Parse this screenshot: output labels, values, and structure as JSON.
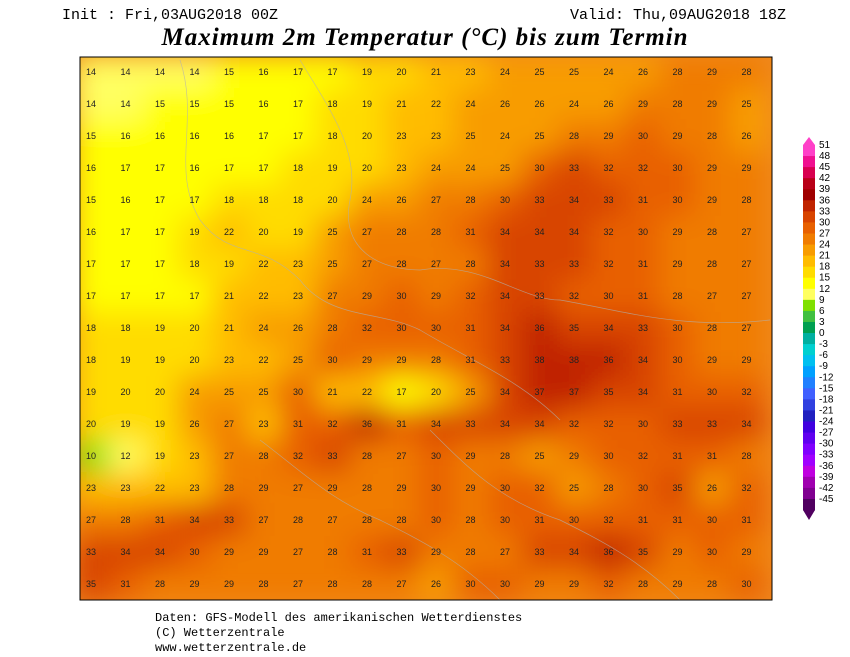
{
  "header": {
    "init": "Init : Fri,03AUG2018 00Z",
    "valid": "Valid: Thu,09AUG2018 18Z",
    "title": "Maximum 2m Temperatur (°C) bis zum Termin"
  },
  "map": {
    "temperature_labels": [
      [
        14,
        14,
        14,
        14,
        15,
        16,
        17,
        17,
        19,
        20,
        21,
        23,
        24,
        25,
        25,
        24,
        26,
        28,
        29,
        28
      ],
      [
        14,
        14,
        15,
        15,
        15,
        16,
        17,
        18,
        19,
        21,
        22,
        24,
        26,
        26,
        24,
        26,
        29,
        28,
        29,
        25
      ],
      [
        15,
        16,
        16,
        16,
        16,
        17,
        17,
        18,
        20,
        23,
        23,
        25,
        24,
        25,
        28,
        29,
        30,
        29,
        28,
        26
      ],
      [
        16,
        17,
        17,
        16,
        17,
        17,
        18,
        19,
        20,
        23,
        24,
        24,
        25,
        30,
        33,
        32,
        32,
        30,
        29,
        29
      ],
      [
        15,
        16,
        17,
        17,
        18,
        18,
        18,
        20,
        24,
        26,
        27,
        28,
        30,
        33,
        34,
        33,
        31,
        30,
        29,
        28
      ],
      [
        16,
        17,
        17,
        19,
        22,
        20,
        19,
        25,
        27,
        28,
        28,
        31,
        34,
        34,
        34,
        32,
        30,
        29,
        28,
        27
      ],
      [
        17,
        17,
        17,
        18,
        19,
        22,
        23,
        25,
        27,
        28,
        27,
        28,
        34,
        33,
        33,
        32,
        31,
        29,
        28,
        27
      ],
      [
        17,
        17,
        17,
        17,
        21,
        22,
        23,
        27,
        29,
        30,
        29,
        32,
        34,
        33,
        32,
        30,
        31,
        28,
        27,
        27
      ],
      [
        18,
        18,
        19,
        20,
        21,
        24,
        26,
        28,
        32,
        30,
        30,
        31,
        34,
        36,
        35,
        34,
        33,
        30,
        28,
        27
      ],
      [
        18,
        19,
        19,
        20,
        23,
        22,
        25,
        30,
        29,
        29,
        28,
        31,
        33,
        38,
        38,
        36,
        34,
        30,
        29,
        29
      ],
      [
        19,
        20,
        20,
        24,
        25,
        25,
        30,
        21,
        22,
        17,
        20,
        25,
        34,
        37,
        37,
        35,
        34,
        31,
        30,
        32
      ],
      [
        20,
        19,
        19,
        26,
        27,
        23,
        31,
        32,
        36,
        31,
        34,
        33,
        34,
        34,
        32,
        32,
        30,
        33,
        33,
        34
      ],
      [
        10,
        12,
        19,
        23,
        27,
        28,
        32,
        33,
        28,
        27,
        30,
        29,
        28,
        25,
        29,
        30,
        32,
        31,
        31,
        28
      ],
      [
        23,
        23,
        22,
        23,
        28,
        29,
        27,
        29,
        28,
        29,
        30,
        29,
        30,
        32,
        25,
        28,
        30,
        35,
        26,
        32
      ],
      [
        27,
        28,
        31,
        34,
        33,
        27,
        28,
        27,
        28,
        28,
        30,
        28,
        30,
        31,
        30,
        32,
        31,
        31,
        30,
        31
      ],
      [
        33,
        34,
        34,
        30,
        29,
        29,
        27,
        28,
        31,
        33,
        29,
        28,
        27,
        33,
        34,
        36,
        35,
        29,
        30,
        29
      ],
      [
        35,
        31,
        28,
        29,
        29,
        28,
        27,
        28,
        28,
        27,
        26,
        30,
        30,
        29,
        29,
        32,
        28,
        29,
        28,
        30
      ]
    ]
  },
  "color_scale": {
    "values": [
      51,
      48,
      45,
      42,
      39,
      36,
      33,
      30,
      27,
      24,
      21,
      18,
      15,
      12,
      9,
      6,
      3,
      0,
      -3,
      -6,
      -9,
      -12,
      -15,
      -18,
      -21,
      -24,
      -27,
      -30,
      -33,
      -36,
      -39,
      -42,
      -45
    ],
    "colors": [
      "#ff40c8",
      "#f01090",
      "#d80050",
      "#b80018",
      "#a00000",
      "#c02400",
      "#d84400",
      "#e86000",
      "#f07c00",
      "#f89c00",
      "#ffbc00",
      "#ffdc00",
      "#ffff00",
      "#ffff60",
      "#80e000",
      "#40c040",
      "#00a050",
      "#00b0a0",
      "#00d0d0",
      "#00c0f0",
      "#00a0ff",
      "#2080ff",
      "#4060ff",
      "#3040e0",
      "#2020c0",
      "#4000e0",
      "#6000f0",
      "#8000ff",
      "#a000ff",
      "#c000e0",
      "#a000b0",
      "#800090",
      "#500060"
    ]
  },
  "footer": {
    "lines": [
      "Daten: GFS-Modell des amerikanischen Wetterdienstes",
      "(C) Wetterzentrale",
      "www.wetterzentrale.de"
    ]
  }
}
